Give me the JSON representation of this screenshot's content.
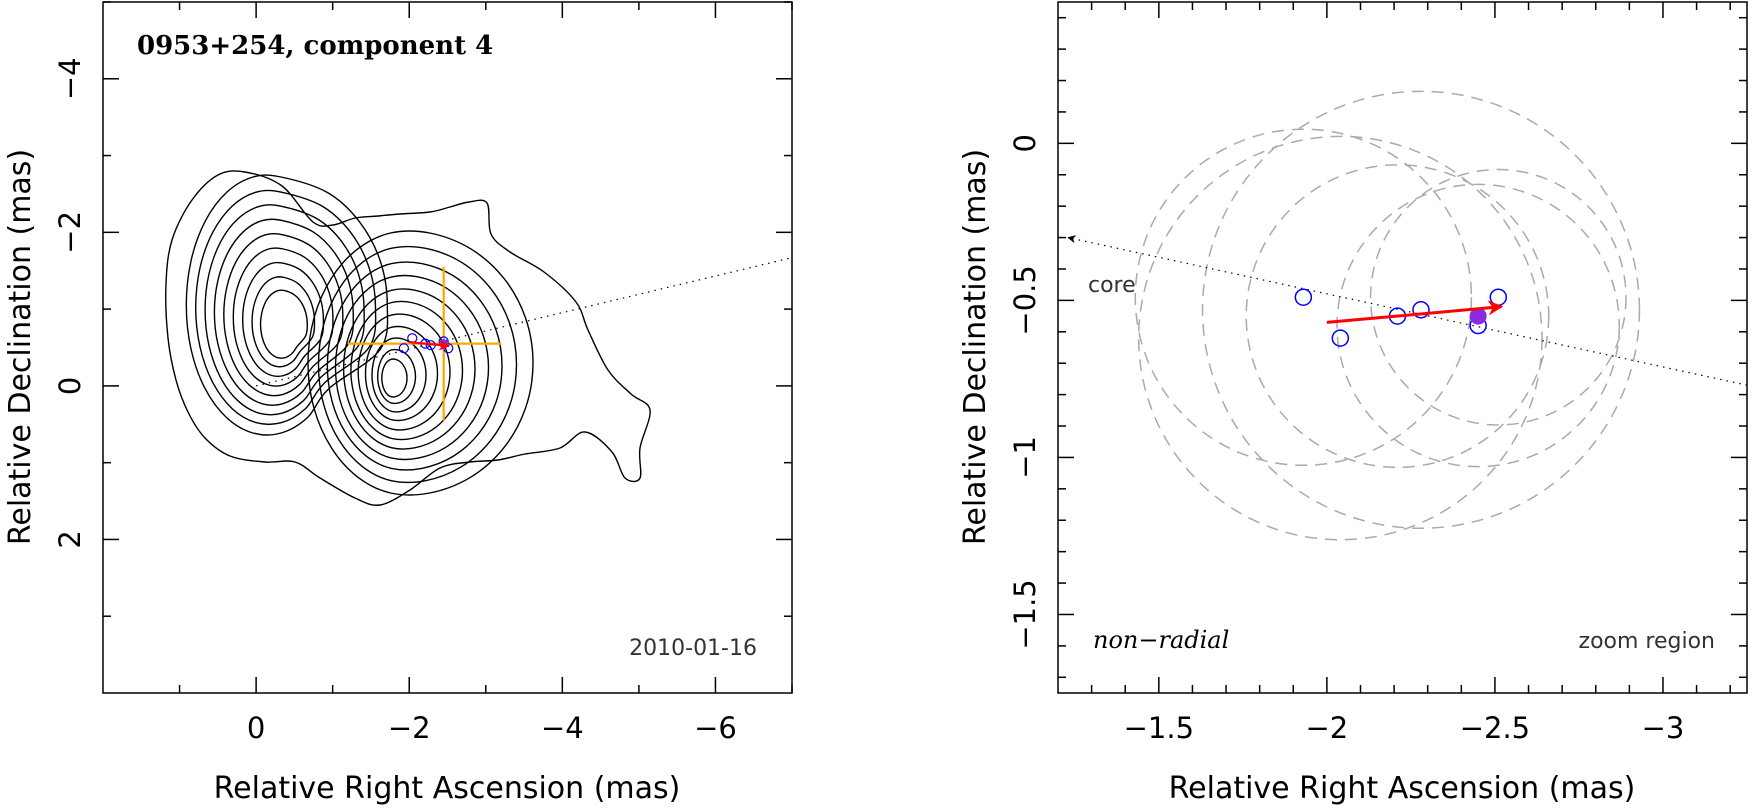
{
  "colors": {
    "contour": "#000000",
    "zoom_box": "#ffa500",
    "motion_arrow": "#ff0000",
    "positions": "#0000ff",
    "current_position": "#8a2be2",
    "beam_circles": "#aaaaaa",
    "trajectory": "#000000"
  },
  "chart_data": [
    {
      "type": "contour",
      "title": "0953+254, component 4",
      "date": "2010-01-16",
      "xlabel": "Relative Right Ascension (mas)",
      "ylabel": "Relative Declination (mas)",
      "xlim": [
        2.0,
        -7.0
      ],
      "ylim": [
        -5.0,
        4.0
      ],
      "xticks": [
        0,
        -2,
        -4,
        -6
      ],
      "xtick_labels": [
        "0",
        "−2",
        "−4",
        "−6"
      ],
      "yticks": [
        2,
        0,
        -2,
        -4
      ],
      "ytick_labels": [
        "2",
        "0",
        "−2",
        "−4"
      ],
      "trajectory_line": {
        "x": [
          0,
          -7.0
        ],
        "y": [
          0,
          -1.67
        ]
      },
      "zoom_box": {
        "x": [
          -1.2,
          -3.2
        ],
        "y": [
          0.45,
          -1.55
        ],
        "center": [
          -2.45,
          -0.55
        ]
      },
      "positions": {
        "x": [
          -1.93,
          -2.04,
          -2.21,
          -2.28,
          -2.45,
          -2.51
        ],
        "y": [
          -0.49,
          -0.62,
          -0.55,
          -0.53,
          -0.58,
          -0.49
        ]
      },
      "current_position": {
        "x": -2.45,
        "y": -0.55
      },
      "motion_arrow": {
        "from": [
          -2.0,
          -0.57
        ],
        "to": [
          -2.52,
          -0.52
        ]
      }
    },
    {
      "type": "scatter",
      "xlabel": "Relative Right Ascension (mas)",
      "ylabel": "Relative Declination (mas)",
      "xlim": [
        -1.2,
        -3.25
      ],
      "ylim": [
        -1.75,
        0.45
      ],
      "xticks": [
        -1.5,
        -2,
        -2.5,
        -3
      ],
      "xtick_labels": [
        "−1.5",
        "−2",
        "−2.5",
        "−3"
      ],
      "yticks": [
        0,
        -0.5,
        -1,
        -1.5
      ],
      "ytick_labels": [
        "0",
        "−0.5",
        "−1",
        "−1.5"
      ],
      "annotations": {
        "core": "core",
        "mode": "non−radial",
        "region": "zoom region"
      },
      "positions": {
        "x": [
          -1.93,
          -2.04,
          -2.21,
          -2.28,
          -2.45,
          -2.51
        ],
        "y": [
          -0.49,
          -0.62,
          -0.55,
          -0.53,
          -0.58,
          -0.49
        ]
      },
      "current_position": {
        "x": -2.45,
        "y": -0.55
      },
      "beam_circles": [
        {
          "x": -1.93,
          "y": -0.49,
          "r": 0.5
        },
        {
          "x": -2.04,
          "y": -0.62,
          "r": 0.6
        },
        {
          "x": -2.21,
          "y": -0.55,
          "r": 0.45
        },
        {
          "x": -2.28,
          "y": -0.53,
          "r": 0.65
        },
        {
          "x": -2.45,
          "y": -0.58,
          "r": 0.42
        },
        {
          "x": -2.51,
          "y": -0.49,
          "r": 0.38
        }
      ],
      "motion_arrow": {
        "from": [
          -2.0,
          -0.57
        ],
        "to": [
          -2.52,
          -0.52
        ]
      },
      "trajectory_line": {
        "from": [
          -1.23,
          -0.3
        ],
        "to": [
          -3.25,
          -0.77
        ]
      }
    }
  ]
}
